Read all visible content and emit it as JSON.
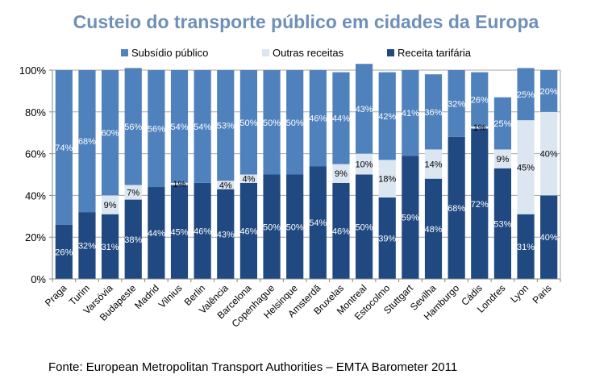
{
  "chart_data": {
    "type": "bar",
    "stacked": true,
    "title": "Custeio do transporte público em cidades da Europa",
    "xlabel": "",
    "ylabel": "",
    "ylim": [
      0,
      100
    ],
    "yticks": [
      "0%",
      "20%",
      "40%",
      "60%",
      "80%",
      "100%"
    ],
    "ytick_values": [
      0,
      20,
      40,
      60,
      80,
      100
    ],
    "grid": true,
    "legend_position": "top",
    "categories": [
      "Praga",
      "Turim",
      "Varsóvia",
      "Budapeste",
      "Madrid",
      "Vilnius",
      "Berlin",
      "Valência",
      "Barcelona",
      "Copenhague",
      "Helsinque",
      "Amsterdã",
      "Bruxelas",
      "Montreal",
      "Estocolmo",
      "Stuttgart",
      "Sevilha",
      "Hamburgo",
      "Cádis",
      "Londres",
      "Lyon",
      "Paris"
    ],
    "series": [
      {
        "name": "Receita tarifária",
        "color": "#1f4980",
        "label_color": "#ffffff",
        "values": [
          26,
          32,
          31,
          38,
          44,
          45,
          46,
          43,
          46,
          50,
          50,
          54,
          46,
          50,
          39,
          59,
          48,
          68,
          72,
          53,
          31,
          40
        ]
      },
      {
        "name": "Outras receitas",
        "color": "#dce6f1",
        "label_color": "#000000",
        "values": [
          0,
          0,
          9,
          7,
          0,
          1,
          0,
          4,
          4,
          0,
          0,
          0,
          9,
          10,
          18,
          0,
          14,
          0,
          1,
          9,
          45,
          40
        ]
      },
      {
        "name": "Subsídio público",
        "color": "#4f81bd",
        "label_color": "#ffffff",
        "values": [
          74,
          68,
          60,
          56,
          56,
          54,
          54,
          53,
          50,
          50,
          50,
          46,
          44,
          43,
          42,
          41,
          36,
          32,
          26,
          25,
          25,
          20
        ]
      }
    ],
    "legend_order": [
      "Subsídio público",
      "Outras receitas",
      "Receita tarifária"
    ]
  },
  "legend": [
    {
      "label": "Subsídio público",
      "color": "#4f81bd"
    },
    {
      "label": "Outras receitas",
      "color": "#dce6f1"
    },
    {
      "label": "Receita tarifária",
      "color": "#1f4980"
    }
  ],
  "source": "Fonte: European Metropolitan Transport Authorities – EMTA Barometer 2011"
}
